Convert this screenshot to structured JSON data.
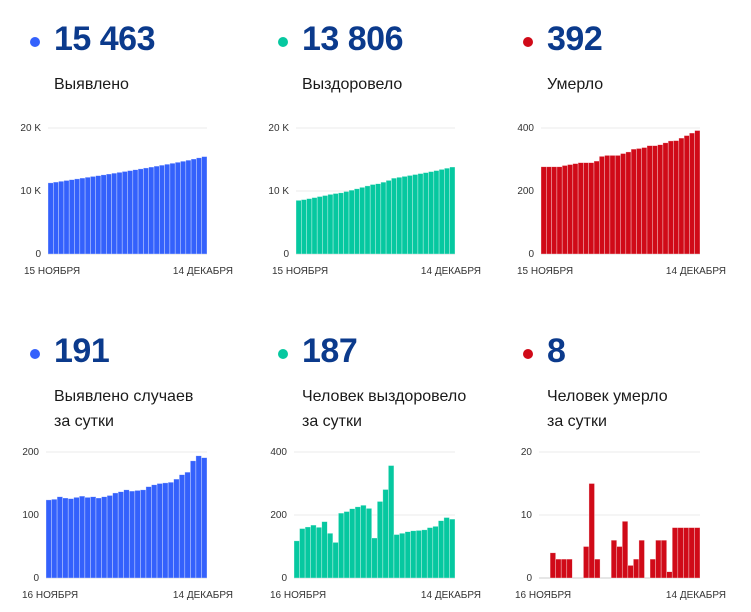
{
  "colors": {
    "cases": "#3461fc",
    "recovered": "#06c8a0",
    "deaths": "#d00a18",
    "number": "#0b3a8c"
  },
  "panels": [
    {
      "value": "15 463",
      "label1": "Выявлено",
      "label2": "",
      "color": "cases",
      "chart_data": {
        "type": "bar",
        "ylim": [
          0,
          20000
        ],
        "yticks": [
          "0",
          "10 K",
          "20 K"
        ],
        "ytick_values": [
          0,
          10000,
          20000
        ],
        "x_start": "15 НОЯБРЯ",
        "x_end": "14 ДЕКАБРЯ",
        "values": [
          11295,
          11419,
          11544,
          11673,
          11800,
          11926,
          12054,
          12184,
          12312,
          12441,
          12568,
          12697,
          12828,
          12963,
          13100,
          13240,
          13378,
          13517,
          13657,
          13802,
          13950,
          14100,
          14251,
          14403,
          14560,
          14724,
          14892,
          15078,
          15272,
          15463
        ]
      }
    },
    {
      "value": "13 806",
      "label1": "Выздоровело",
      "label2": "",
      "color": "recovered",
      "chart_data": {
        "type": "bar",
        "ylim": [
          0,
          20000
        ],
        "yticks": [
          "0",
          "10 K",
          "20 K"
        ],
        "ytick_values": [
          0,
          10000,
          20000
        ],
        "x_start": "15 НОЯБРЯ",
        "x_end": "14 ДЕКАБРЯ",
        "values": [
          8517,
          8635,
          8792,
          8954,
          9122,
          9283,
          9462,
          9604,
          9717,
          9923,
          10134,
          10354,
          10580,
          10811,
          11032,
          11159,
          11402,
          11683,
          12040,
          12178,
          12320,
          12467,
          12617,
          12768,
          12921,
          13081,
          13245,
          13427,
          13619,
          13806
        ]
      }
    },
    {
      "value": "392",
      "label1": "Умерло",
      "label2": "",
      "color": "deaths",
      "chart_data": {
        "type": "bar",
        "ylim": [
          0,
          400
        ],
        "yticks": [
          "0",
          "200",
          "400"
        ],
        "ytick_values": [
          0,
          200,
          400
        ],
        "x_start": "15 НОЯБРЯ",
        "x_end": "14 ДЕКАБРЯ",
        "values": [
          277,
          277,
          277,
          277,
          281,
          284,
          287,
          290,
          290,
          290,
          295,
          310,
          313,
          313,
          313,
          319,
          324,
          333,
          335,
          338,
          344,
          344,
          347,
          353,
          359,
          360,
          368,
          376,
          384,
          392
        ]
      }
    },
    {
      "value": "191",
      "label1": "Выявлено случаев",
      "label2": "за сутки",
      "color": "cases",
      "chart_data": {
        "type": "bar",
        "ylim": [
          0,
          200
        ],
        "yticks": [
          "0",
          "100",
          "200"
        ],
        "ytick_values": [
          0,
          100,
          200
        ],
        "x_start": "16 НОЯБРЯ",
        "x_end": "14 ДЕКАБРЯ",
        "values": [
          124,
          125,
          129,
          127,
          126,
          128,
          130,
          128,
          129,
          127,
          129,
          131,
          135,
          137,
          140,
          138,
          139,
          140,
          145,
          148,
          150,
          151,
          152,
          157,
          164,
          168,
          186,
          194,
          191
        ]
      }
    },
    {
      "value": "187",
      "label1": "Человек выздоровело",
      "label2": "за сутки",
      "color": "recovered",
      "chart_data": {
        "type": "bar",
        "ylim": [
          0,
          400
        ],
        "yticks": [
          "0",
          "200",
          "400"
        ],
        "ytick_values": [
          0,
          200,
          400
        ],
        "x_start": "16 НОЯБРЯ",
        "x_end": "14 ДЕКАБРЯ",
        "values": [
          118,
          157,
          162,
          168,
          161,
          179,
          142,
          113,
          206,
          211,
          220,
          226,
          231,
          221,
          127,
          243,
          281,
          357,
          138,
          142,
          147,
          150,
          151,
          153,
          160,
          164,
          182,
          192,
          187
        ]
      }
    },
    {
      "value": "8",
      "label1": "Человек умерло",
      "label2": "за сутки",
      "color": "deaths",
      "chart_data": {
        "type": "bar",
        "ylim": [
          0,
          20
        ],
        "yticks": [
          "0",
          "10",
          "20"
        ],
        "ytick_values": [
          0,
          10,
          20
        ],
        "x_start": "16 НОЯБРЯ",
        "x_end": "14 ДЕКАБРЯ",
        "values": [
          0,
          0,
          4,
          3,
          3,
          3,
          0,
          0,
          5,
          15,
          3,
          0,
          0,
          6,
          5,
          9,
          2,
          3,
          6,
          0,
          3,
          6,
          6,
          1,
          8,
          8,
          8,
          8,
          8
        ]
      }
    }
  ]
}
